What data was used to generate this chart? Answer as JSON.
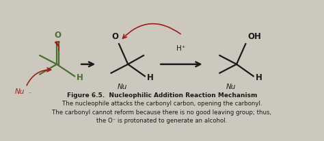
{
  "background_color": "#ccc8be",
  "title_bold": "Figure 6.5.  Nucleophilic Addition Reaction Mechanism",
  "line1": "The nucleophile attacks the carbonyl carbon, opening the carbonyl.",
  "line2": "The carbonyl cannot reform because there is no good leaving group; thus,",
  "line3": "the O⁻ is protonated to generate an alcohol.",
  "dark_color": "#1a1a1a",
  "green_color": "#4a6e30",
  "red_color": "#9b1c1c",
  "fig_width": 4.74,
  "fig_height": 2.06,
  "dpi": 100
}
